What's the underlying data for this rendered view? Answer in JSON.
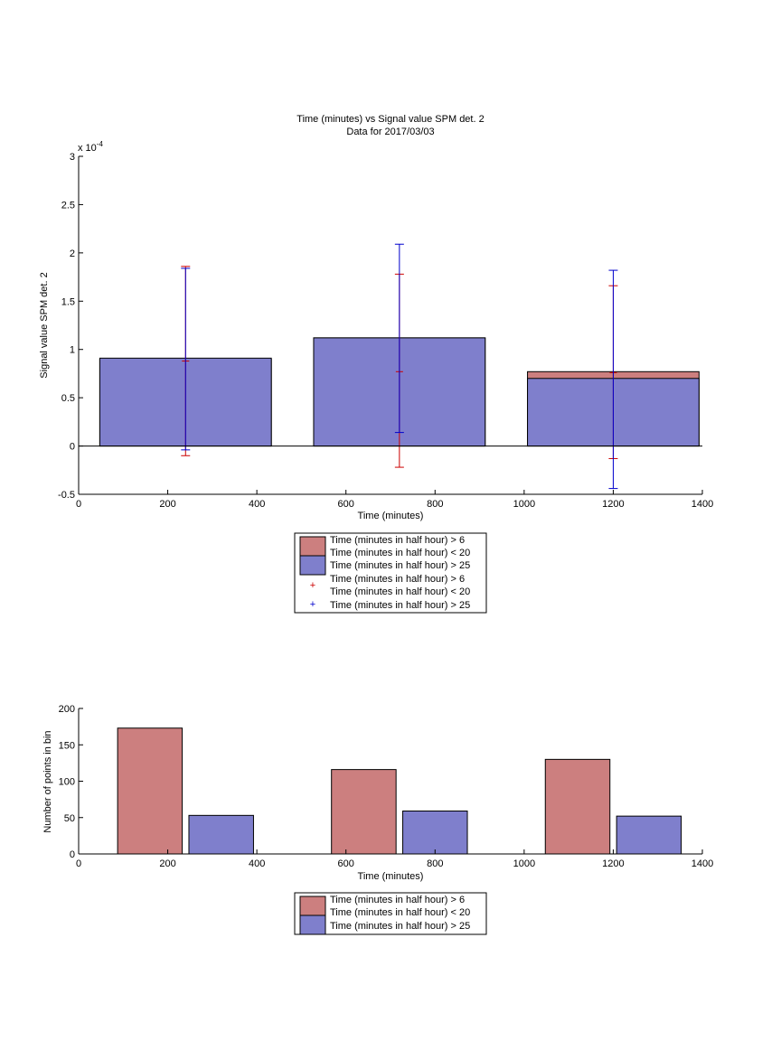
{
  "chart_data": [
    {
      "type": "bar",
      "title": "Time (minutes) vs Signal value SPM det. 2",
      "subtitle": "Data for 2017/03/03",
      "xlabel": "Time (minutes)",
      "ylabel": "Signal value SPM det. 2",
      "y_exponent_label": "x 10",
      "y_exponent_power": "-4",
      "xlim": [
        0,
        1400
      ],
      "ylim": [
        -0.5,
        3
      ],
      "xticks": [
        "0",
        "200",
        "400",
        "600",
        "800",
        "1000",
        "1200",
        "1400"
      ],
      "yticks": [
        "-0.5",
        "0",
        "0.5",
        "1",
        "1.5",
        "2",
        "2.5",
        "3"
      ],
      "bar_x": [
        240,
        720,
        1200
      ],
      "bar_width": 385,
      "series": [
        {
          "name": "Time (minutes in half hour) > 6 Time (minutes in half hour) < 20",
          "color": "#cc7f7f",
          "values": [
            0.9,
            1.12,
            0.77
          ],
          "error_low": [
            -0.1,
            -0.22,
            -0.13
          ],
          "error_high": [
            1.86,
            1.78,
            1.66
          ],
          "error_mid": [
            0.88,
            0.77,
            0.76
          ],
          "error_color": "#cc0000"
        },
        {
          "name": "Time (minutes in half hour) > 25",
          "color": "#7f7fcc",
          "values": [
            0.91,
            1.12,
            0.7
          ],
          "error_low": [
            -0.04,
            0.14,
            -0.44
          ],
          "error_high": [
            1.84,
            2.09,
            1.82
          ],
          "error_color": "#0000cc"
        }
      ],
      "legend": {
        "position": "below",
        "entries": [
          {
            "line1": "Time (minutes in half hour) > 6",
            "line2": "Time (minutes in half hour) < 20",
            "line3": "Time (minutes in half hour) > 25"
          },
          {
            "line1": "Time (minutes in half hour) > 6",
            "line2": "Time (minutes in half hour) < 20",
            "line3": "Time (minutes in half hour) > 25"
          }
        ]
      }
    },
    {
      "type": "bar",
      "xlabel": "Time (minutes)",
      "ylabel": "Number of points in bin",
      "xlim": [
        0,
        1400
      ],
      "ylim": [
        0,
        200
      ],
      "xticks": [
        "0",
        "200",
        "400",
        "600",
        "800",
        "1000",
        "1200",
        "1400"
      ],
      "yticks": [
        "0",
        "50",
        "100",
        "150",
        "200"
      ],
      "bar_width": 145,
      "series": [
        {
          "name": "Time (minutes in half hour) > 6 Time (minutes in half hour) < 20",
          "color": "#cc7f7f",
          "x": [
            160,
            640,
            1120
          ],
          "values": [
            173,
            116,
            130
          ]
        },
        {
          "name": "Time (minutes in half hour) > 25",
          "color": "#7f7fcc",
          "x": [
            320,
            800,
            1280
          ],
          "values": [
            53,
            59,
            52
          ]
        }
      ],
      "legend": {
        "position": "below",
        "line1": "Time (minutes in half hour) > 6",
        "line2": "Time (minutes in half hour) < 20",
        "line3": "Time (minutes in half hour) > 25"
      }
    }
  ]
}
